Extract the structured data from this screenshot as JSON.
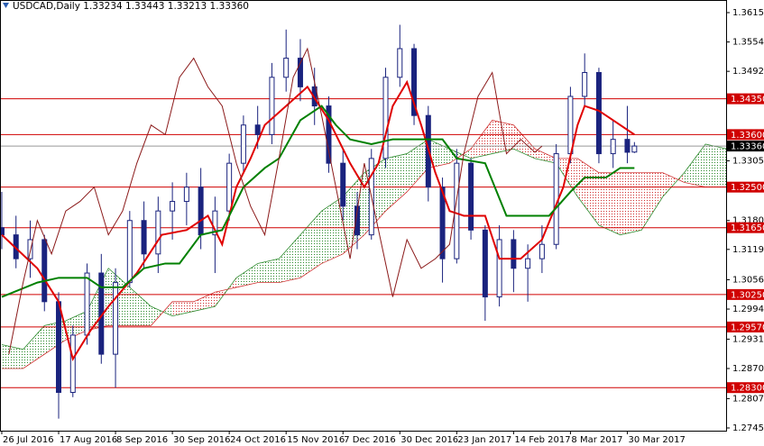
{
  "chart_data": {
    "type": "candlestick",
    "title": "USDCAD,Daily  1.33234 1.33443 1.33213 1.33360",
    "candle_color": "#1a237e",
    "x": [
      0,
      4,
      8,
      12,
      16,
      20,
      24,
      28,
      32,
      36,
      40,
      44,
      48,
      52,
      56,
      60,
      64,
      68,
      72,
      76,
      80,
      84,
      88,
      92,
      96,
      100,
      104,
      108,
      112,
      116,
      120,
      124,
      128,
      132,
      136,
      140,
      144,
      148,
      152,
      156,
      160,
      164,
      168,
      172,
      176,
      178
    ],
    "open": [
      1.3165,
      1.315,
      1.31,
      1.314,
      1.301,
      1.282,
      1.294,
      1.307,
      1.29,
      1.305,
      1.318,
      1.311,
      1.32,
      1.322,
      1.325,
      1.315,
      1.32,
      1.33,
      1.338,
      1.336,
      1.348,
      1.352,
      1.346,
      1.342,
      1.33,
      1.321,
      1.315,
      1.331,
      1.348,
      1.354,
      1.34,
      1.325,
      1.31,
      1.33,
      1.316,
      1.302,
      1.314,
      1.308,
      1.31,
      1.313,
      1.332,
      1.344,
      1.349,
      1.332,
      1.335,
      1.33234
    ],
    "high": [
      1.324,
      1.319,
      1.318,
      1.315,
      1.303,
      1.296,
      1.309,
      1.311,
      1.308,
      1.32,
      1.322,
      1.323,
      1.326,
      1.328,
      1.329,
      1.323,
      1.332,
      1.34,
      1.342,
      1.351,
      1.358,
      1.356,
      1.35,
      1.344,
      1.333,
      1.324,
      1.333,
      1.35,
      1.359,
      1.355,
      1.342,
      1.327,
      1.333,
      1.331,
      1.317,
      1.317,
      1.316,
      1.313,
      1.317,
      1.334,
      1.346,
      1.353,
      1.35,
      1.339,
      1.342,
      1.33443
    ],
    "low": [
      1.312,
      1.308,
      1.306,
      1.299,
      1.2765,
      1.281,
      1.292,
      1.288,
      1.283,
      1.304,
      1.308,
      1.307,
      1.314,
      1.317,
      1.312,
      1.307,
      1.318,
      1.328,
      1.333,
      1.334,
      1.345,
      1.343,
      1.338,
      1.328,
      1.318,
      1.312,
      1.314,
      1.329,
      1.346,
      1.338,
      1.322,
      1.305,
      1.309,
      1.314,
      1.297,
      1.3,
      1.303,
      1.301,
      1.307,
      1.312,
      1.33,
      1.342,
      1.33,
      1.329,
      1.33,
      1.33213
    ],
    "close": [
      1.315,
      1.31,
      1.314,
      1.301,
      1.282,
      1.294,
      1.307,
      1.29,
      1.305,
      1.318,
      1.311,
      1.32,
      1.322,
      1.325,
      1.315,
      1.32,
      1.33,
      1.338,
      1.336,
      1.348,
      1.352,
      1.346,
      1.342,
      1.33,
      1.321,
      1.315,
      1.331,
      1.348,
      1.354,
      1.34,
      1.325,
      1.31,
      1.33,
      1.316,
      1.302,
      1.314,
      1.308,
      1.31,
      1.313,
      1.332,
      1.344,
      1.349,
      1.332,
      1.335,
      1.3323,
      1.3336
    ],
    "series": [
      {
        "color": "#e00000",
        "width": 2,
        "x": [
          0,
          10,
          16,
          20,
          25,
          30,
          38,
          45,
          52,
          58,
          62,
          66,
          70,
          74,
          80,
          86,
          92,
          98,
          102,
          106,
          110,
          114,
          118,
          122,
          126,
          130,
          136,
          140,
          146,
          152,
          158,
          162,
          164,
          168,
          172,
          178
        ],
        "values": [
          1.315,
          1.308,
          1.301,
          1.289,
          1.295,
          1.3,
          1.307,
          1.315,
          1.316,
          1.319,
          1.313,
          1.325,
          1.331,
          1.338,
          1.342,
          1.346,
          1.339,
          1.33,
          1.325,
          1.33,
          1.342,
          1.347,
          1.338,
          1.328,
          1.32,
          1.319,
          1.319,
          1.31,
          1.31,
          1.314,
          1.325,
          1.338,
          1.342,
          1.341,
          1.339,
          1.336
        ]
      },
      {
        "color": "#008000",
        "width": 2,
        "x": [
          0,
          10,
          16,
          24,
          28,
          34,
          40,
          46,
          50,
          56,
          62,
          68,
          74,
          78,
          84,
          90,
          94,
          98,
          104,
          110,
          124,
          128,
          136,
          142,
          150,
          154,
          160,
          164,
          170,
          174,
          178
        ],
        "values": [
          1.302,
          1.305,
          1.306,
          1.306,
          1.304,
          1.304,
          1.308,
          1.309,
          1.309,
          1.315,
          1.316,
          1.325,
          1.329,
          1.331,
          1.339,
          1.342,
          1.338,
          1.335,
          1.334,
          1.335,
          1.335,
          1.331,
          1.33,
          1.319,
          1.319,
          1.319,
          1.324,
          1.327,
          1.327,
          1.329,
          1.329
        ]
      },
      {
        "color": "#8b1a1a",
        "width": 1,
        "x": [
          2,
          6,
          10,
          14,
          18,
          22,
          26,
          30,
          34,
          38,
          42,
          46,
          50,
          54,
          58,
          62,
          66,
          70,
          74,
          78,
          82,
          86,
          90,
          94,
          98,
          102,
          106,
          110,
          114,
          118,
          122,
          126,
          130,
          134,
          138,
          142,
          146,
          150,
          152
        ],
        "values": [
          1.29,
          1.305,
          1.318,
          1.311,
          1.32,
          1.322,
          1.325,
          1.315,
          1.32,
          1.33,
          1.338,
          1.336,
          1.348,
          1.352,
          1.346,
          1.342,
          1.33,
          1.321,
          1.315,
          1.331,
          1.348,
          1.354,
          1.34,
          1.325,
          1.31,
          1.33,
          1.316,
          1.302,
          1.314,
          1.308,
          1.31,
          1.313,
          1.332,
          1.344,
          1.349,
          1.332,
          1.335,
          1.3323,
          1.3336
        ]
      }
    ],
    "cloud": {
      "bull_color": "#2e8b2e",
      "bear_color": "#d03030",
      "x": [
        0,
        6,
        12,
        18,
        24,
        30,
        36,
        42,
        48,
        54,
        60,
        66,
        72,
        78,
        84,
        90,
        96,
        102,
        108,
        114,
        120,
        126,
        132,
        138,
        144,
        150,
        156,
        162,
        168,
        174,
        180,
        186,
        192,
        198,
        204
      ],
      "span_a": [
        1.292,
        1.291,
        1.296,
        1.297,
        1.299,
        1.308,
        1.304,
        1.3,
        1.298,
        1.299,
        1.3,
        1.306,
        1.309,
        1.31,
        1.315,
        1.32,
        1.323,
        1.328,
        1.331,
        1.332,
        1.335,
        1.333,
        1.331,
        1.332,
        1.333,
        1.331,
        1.33,
        1.323,
        1.317,
        1.315,
        1.316,
        1.323,
        1.328,
        1.334,
        1.333
      ],
      "span_b": [
        1.287,
        1.287,
        1.29,
        1.293,
        1.295,
        1.296,
        1.296,
        1.296,
        1.301,
        1.301,
        1.303,
        1.304,
        1.305,
        1.305,
        1.306,
        1.309,
        1.311,
        1.315,
        1.32,
        1.324,
        1.329,
        1.33,
        1.333,
        1.339,
        1.338,
        1.333,
        1.331,
        1.331,
        1.328,
        1.328,
        1.328,
        1.328,
        1.326,
        1.325,
        1.325
      ]
    },
    "levels": {
      "color": "#d00000",
      "values": [
        {
          "value": 1.3435,
          "label": "1.34350"
        },
        {
          "value": 1.336,
          "label": "1.33600"
        },
        {
          "value": 1.325,
          "label": "1.32500"
        },
        {
          "value": 1.3165,
          "label": "1.31650"
        },
        {
          "value": 1.3025,
          "label": "1.30250"
        },
        {
          "value": 1.2957,
          "label": "1.29570"
        },
        {
          "value": 1.283,
          "label": "1.28300"
        }
      ]
    },
    "current_price": {
      "value": 1.3336,
      "label": "1.33360"
    },
    "xlim": [
      -0.5,
      203.8
    ],
    "ylim": [
      1.27398,
      1.36419
    ],
    "yticks": [
      1.36155,
      {
        "value": 1.3554,
        "label": "1.35540"
      },
      1.34925,
      {
        "value": 1.3305,
        "label": "1.33050"
      },
      {
        "value": 1.318,
        "label": "1.31800"
      },
      1.31195,
      {
        "value": 1.3056,
        "label": "1.30560"
      },
      1.29945,
      1.29315,
      {
        "value": 1.287,
        "label": "1.28700"
      },
      {
        "value": 1.2807,
        "label": "1.28070"
      },
      1.27455
    ],
    "xticks": [
      {
        "value": 0,
        "label": "26 Jul 2016"
      },
      {
        "value": 16,
        "label": "17 Aug 2016"
      },
      {
        "value": 32,
        "label": "8 Sep 2016"
      },
      {
        "value": 48,
        "label": "30 Sep 2016"
      },
      {
        "value": 64,
        "label": "24 Oct 2016"
      },
      {
        "value": 80,
        "label": "15 Nov 2016"
      },
      {
        "value": 96,
        "label": "7 Dec 2016"
      },
      {
        "value": 112,
        "label": "30 Dec 2016"
      },
      {
        "value": 128,
        "label": "23 Jan 2017"
      },
      {
        "value": 144,
        "label": "14 Feb 2017"
      },
      {
        "value": 160,
        "label": "8 Mar 2017"
      },
      {
        "value": 176,
        "label": "30 Mar 2017"
      }
    ]
  }
}
